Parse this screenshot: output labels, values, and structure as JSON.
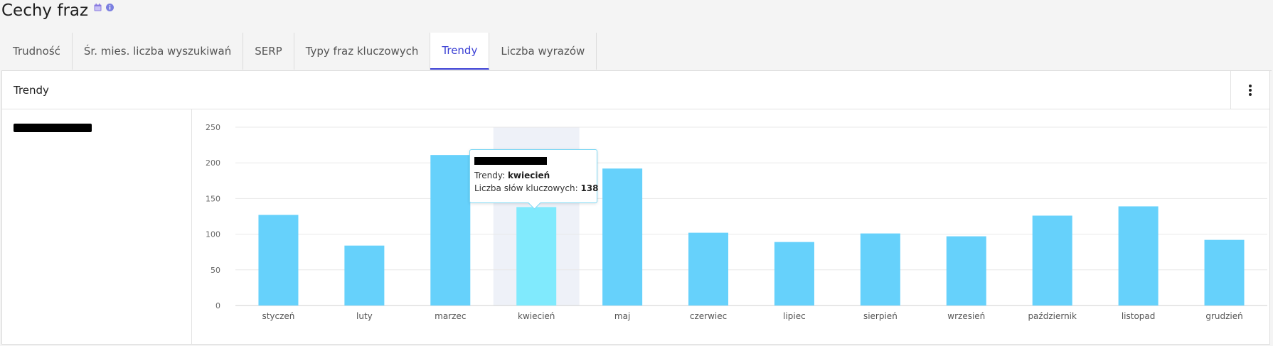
{
  "header": {
    "title": "Cechy fraz"
  },
  "icons": {
    "calendar": "calendar-icon",
    "info": "info-icon"
  },
  "tabs": [
    {
      "label": "Trudność"
    },
    {
      "label": "Śr. mies. liczba wyszukiwań"
    },
    {
      "label": "SERP"
    },
    {
      "label": "Typy fraz kluczowych"
    },
    {
      "label": "Trendy",
      "active": true
    },
    {
      "label": "Liczba wyrazów"
    }
  ],
  "panel": {
    "title": "Trendy"
  },
  "tooltip": {
    "series_prefix": "Trendy:",
    "month": "kwiecień",
    "metric_label": "Liczba słów kluczowych:",
    "value": "138"
  },
  "colors": {
    "accent": "#3a3fd4",
    "bar": "#66d1fb",
    "bar_highlight": "#80eafd"
  },
  "chart_data": {
    "type": "bar",
    "categories": [
      "styczeń",
      "luty",
      "marzec",
      "kwiecień",
      "maj",
      "czerwiec",
      "lipiec",
      "sierpień",
      "wrzesień",
      "październik",
      "listopad",
      "grudzień"
    ],
    "values": [
      127,
      84,
      211,
      138,
      192,
      102,
      89,
      101,
      97,
      126,
      139,
      92
    ],
    "ylim": [
      0,
      250
    ],
    "yticks": [
      0,
      50,
      100,
      150,
      200,
      250
    ],
    "grid": true,
    "highlight_index": 3
  }
}
